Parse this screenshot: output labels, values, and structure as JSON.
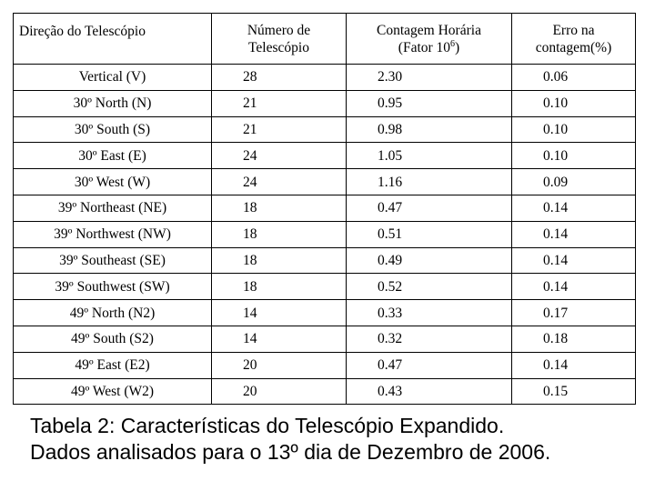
{
  "table": {
    "headers": [
      {
        "text": "Direção do Telescópio"
      },
      {
        "line1": "Número de",
        "line2": "Telescópio"
      },
      {
        "line1": "Contagem Horária",
        "line2_pre": "(Fator 10",
        "line2_sup": "6",
        "line2_post": ")"
      },
      {
        "line1": "Erro na",
        "line2": "contagem(%)"
      }
    ],
    "rows": [
      [
        "Vertical (V)",
        "28",
        "2.30",
        "0.06"
      ],
      [
        "30º North (N)",
        "21",
        "0.95",
        "0.10"
      ],
      [
        "30º South (S)",
        "21",
        "0.98",
        "0.10"
      ],
      [
        "30º East (E)",
        "24",
        "1.05",
        "0.10"
      ],
      [
        "30º West (W)",
        "24",
        "1.16",
        "0.09"
      ],
      [
        "39º Northeast (NE)",
        "18",
        "0.47",
        "0.14"
      ],
      [
        "39º Northwest (NW)",
        "18",
        "0.51",
        "0.14"
      ],
      [
        "39º Southeast (SE)",
        "18",
        "0.49",
        "0.14"
      ],
      [
        "39º Southwest (SW)",
        "18",
        "0.52",
        "0.14"
      ],
      [
        "49º North (N2)",
        "14",
        "0.33",
        "0.17"
      ],
      [
        "49º South (S2)",
        "14",
        "0.32",
        "0.18"
      ],
      [
        "49º East (E2)",
        "20",
        "0.47",
        "0.14"
      ],
      [
        "49º West (W2)",
        "20",
        "0.43",
        "0.15"
      ]
    ]
  },
  "caption": {
    "line1_pre": "Tabela 2: Características  do ",
    "line1_emph": "Telescópio Expandido",
    "line1_post": ".",
    "line2": "Dados analisados para o 13º dia de Dezembro de 2006."
  }
}
